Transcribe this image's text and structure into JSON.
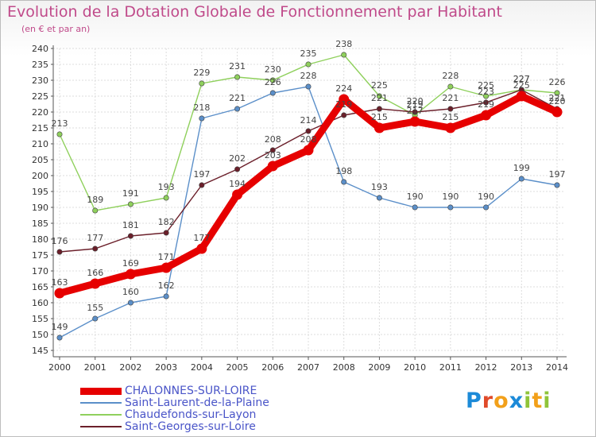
{
  "chart_data": {
    "type": "line",
    "title": "Evolution de la Dotation Globale de Fonctionnement par Habitant",
    "subtitle": "(en € et par an)",
    "xlabel": "",
    "ylabel": "",
    "ylim": [
      145,
      240
    ],
    "y_ticks": [
      "145",
      "150",
      "155",
      "160",
      "165",
      "170",
      "175",
      "180",
      "185",
      "190",
      "195",
      "200",
      "205",
      "210",
      "215",
      "220",
      "225",
      "230",
      "235",
      "240"
    ],
    "categories": [
      "2000",
      "2001",
      "2002",
      "2003",
      "2004",
      "2005",
      "2006",
      "2007",
      "2008",
      "2009",
      "2010",
      "2011",
      "2012",
      "2013",
      "2014"
    ],
    "grid": true,
    "legend_position": "bottom-left",
    "series": [
      {
        "name": "Saint-Laurent-de-la-Plaine",
        "color": "#5b8fc9",
        "values": [
          149,
          155,
          160,
          162,
          218,
          221,
          226,
          228,
          198,
          193,
          190,
          190,
          190,
          199,
          197
        ]
      },
      {
        "name": "Chaudefonds-sur-Layon",
        "color": "#8fd05c",
        "values": [
          213,
          189,
          191,
          193,
          229,
          231,
          230,
          235,
          238,
          225,
          219,
          228,
          225,
          227,
          226
        ]
      },
      {
        "name": "Saint-Georges-sur-Loire",
        "color": "#6b1f2a",
        "values": [
          176,
          177,
          181,
          182,
          197,
          202,
          208,
          214,
          219,
          221,
          220,
          221,
          223,
          227,
          221
        ]
      },
      {
        "name": "CHALONNES-SUR-LOIRE",
        "color": "#e60000",
        "values": [
          163,
          166,
          169,
          171,
          177,
          194,
          203,
          208,
          224,
          215,
          217,
          215,
          219,
          225,
          220
        ]
      }
    ]
  },
  "legend_items": [
    {
      "label": "CHALONNES-SUR-LOIRE",
      "color": "#e60000"
    },
    {
      "label": "Saint-Laurent-de-la-Plaine",
      "color": "#5b8fc9"
    },
    {
      "label": "Chaudefonds-sur-Layon",
      "color": "#8fd05c"
    },
    {
      "label": "Saint-Georges-sur-Loire",
      "color": "#6b1f2a"
    }
  ],
  "brand": {
    "letters": [
      {
        "ch": "P",
        "color": "#1c8ad8"
      },
      {
        "ch": "r",
        "color": "#e04a2a"
      },
      {
        "ch": "o",
        "color": "#f2a01a"
      },
      {
        "ch": "x",
        "color": "#1c8ad8"
      },
      {
        "ch": "i",
        "color": "#8fc43a"
      },
      {
        "ch": "t",
        "color": "#f2a01a"
      },
      {
        "ch": "i",
        "color": "#8fc43a"
      }
    ]
  }
}
